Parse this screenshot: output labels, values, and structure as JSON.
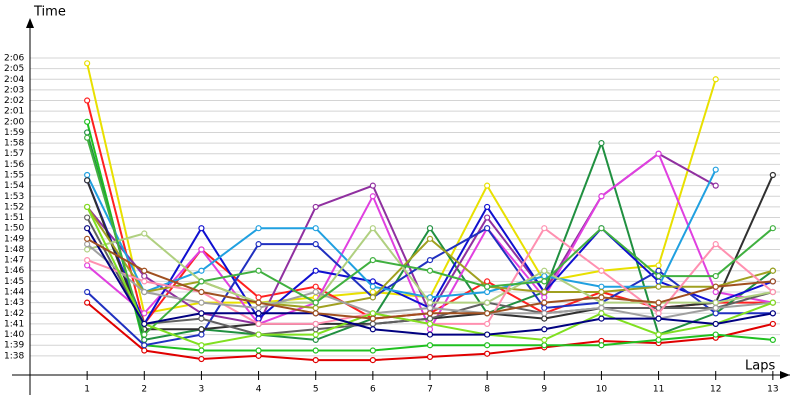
{
  "chart_data": {
    "type": "line",
    "y_label": "Time",
    "x_label": "Laps",
    "xlim": [
      0,
      13.3
    ],
    "xticks": [
      1,
      2,
      3,
      4,
      5,
      6,
      7,
      8,
      9,
      10,
      11,
      12,
      13
    ],
    "ylim": [
      96.2,
      129.1
    ],
    "yticks": [
      {
        "value": 98,
        "label": "1:38"
      },
      {
        "value": 99,
        "label": "1:39"
      },
      {
        "value": 100,
        "label": "1:40"
      },
      {
        "value": 101,
        "label": "1:41"
      },
      {
        "value": 102,
        "label": "1:42"
      },
      {
        "value": 103,
        "label": "1:43"
      },
      {
        "value": 104,
        "label": "1:44"
      },
      {
        "value": 105,
        "label": "1:45"
      },
      {
        "value": 106,
        "label": "1:46"
      },
      {
        "value": 107,
        "label": "1:47"
      },
      {
        "value": 108,
        "label": "1:48"
      },
      {
        "value": 109,
        "label": "1:49"
      },
      {
        "value": 110,
        "label": "1:50"
      },
      {
        "value": 111,
        "label": "1:51"
      },
      {
        "value": 112,
        "label": "1:52"
      },
      {
        "value": 113,
        "label": "1:53"
      },
      {
        "value": 114,
        "label": "1:54"
      },
      {
        "value": 115,
        "label": "1:55"
      },
      {
        "value": 116,
        "label": "1:56"
      },
      {
        "value": 117,
        "label": "1:57"
      },
      {
        "value": 118,
        "label": "1:58"
      },
      {
        "value": 119,
        "label": "1:59"
      },
      {
        "value": 120,
        "label": "2:00"
      },
      {
        "value": 121,
        "label": "2:01"
      },
      {
        "value": 122,
        "label": "2:02"
      },
      {
        "value": 123,
        "label": "2:03"
      },
      {
        "value": 124,
        "label": "2:04"
      },
      {
        "value": 125,
        "label": "2:05"
      },
      {
        "value": 126,
        "label": "2:06"
      }
    ],
    "grid": true,
    "series": [
      {
        "color": "#e00000",
        "values": [
          103,
          98.5,
          97.7,
          98,
          97.6,
          97.6,
          97.9,
          98.2,
          98.8,
          99.4,
          99.2,
          99.7,
          101
        ]
      },
      {
        "color": "#e8e000",
        "values": [
          125.5,
          102,
          103,
          103,
          103.5,
          104,
          103.5,
          114,
          105,
          106,
          106.5,
          124,
          null
        ]
      },
      {
        "color": "#20c020",
        "values": [
          120,
          99,
          98.5,
          98.5,
          98.5,
          98.5,
          99,
          99,
          99,
          99,
          99.5,
          100,
          99.5
        ]
      },
      {
        "color": "#ff2020",
        "values": [
          122,
          101,
          108,
          103.5,
          104.5,
          101.5,
          102,
          105,
          102,
          104,
          102.5,
          103,
          103
        ]
      },
      {
        "color": "#209040",
        "values": [
          119,
          99.5,
          100.5,
          100,
          99.5,
          101.5,
          110,
          102,
          104,
          118,
          100,
          102,
          106
        ]
      },
      {
        "color": "#9030a0",
        "values": [
          112,
          105.5,
          102,
          101,
          112,
          114,
          102,
          111,
          104,
          113,
          117,
          114,
          null
        ]
      },
      {
        "color": "#e040e0",
        "values": [
          106.5,
          102,
          108,
          101,
          103,
          113,
          100.5,
          110,
          103.5,
          113,
          117,
          104,
          103
        ]
      },
      {
        "color": "#1010d0",
        "values": [
          114.5,
          101,
          110,
          101.5,
          106,
          105,
          102.5,
          112,
          104,
          110,
          105,
          103,
          105
        ]
      },
      {
        "color": "#2030c0",
        "values": [
          104,
          99,
          100,
          108.5,
          108.5,
          103.5,
          107,
          110,
          102.5,
          103,
          106,
          102,
          102
        ]
      },
      {
        "color": "#20a0e0",
        "values": [
          115,
          104,
          106,
          110,
          110,
          104.5,
          103.5,
          104,
          105.5,
          104.5,
          104.5,
          115.5,
          null
        ]
      },
      {
        "color": "#303030",
        "values": [
          114.5,
          100.5,
          100.5,
          101,
          101,
          101,
          101.5,
          102,
          101.5,
          102.5,
          102.5,
          103,
          115
        ]
      },
      {
        "color": "#606060",
        "values": [
          111,
          101,
          101.5,
          100,
          100.5,
          101,
          101.5,
          103,
          102,
          102.5,
          102.5,
          102.5,
          104
        ]
      },
      {
        "color": "#a0a020",
        "values": [
          112,
          104,
          105,
          103,
          102.5,
          103.5,
          109,
          104.5,
          104,
          104,
          104.5,
          104.5,
          106
        ]
      },
      {
        "color": "#b0d080",
        "values": [
          108,
          109.5,
          105,
          103,
          103,
          110,
          103,
          103,
          106,
          103,
          103,
          103,
          104
        ]
      },
      {
        "color": "#ff90b0",
        "values": [
          107,
          105,
          104,
          101,
          101,
          102,
          101,
          101,
          110,
          106,
          102,
          108.5,
          104
        ]
      },
      {
        "color": "#a0a0a0",
        "values": [
          108.5,
          104,
          103,
          102.5,
          104,
          102,
          102.5,
          102,
          102,
          102.5,
          101.5,
          102.5,
          103
        ]
      },
      {
        "color": "#40b040",
        "values": [
          118.5,
          100,
          105,
          106,
          103,
          107,
          106,
          104.5,
          105,
          110,
          105.5,
          105.5,
          110
        ]
      },
      {
        "color": "#80e020",
        "values": [
          112,
          101,
          99,
          100,
          100,
          102,
          101,
          100,
          99.5,
          102,
          100,
          101,
          103
        ]
      },
      {
        "color": "#000080",
        "values": [
          110,
          101,
          102,
          102,
          102,
          100.5,
          100,
          100,
          100.5,
          101.5,
          101.5,
          101,
          102
        ]
      },
      {
        "color": "#a05020",
        "values": [
          109,
          106,
          104,
          103,
          102,
          101.5,
          102,
          102,
          103,
          103.5,
          103,
          104.5,
          105
        ]
      }
    ]
  }
}
